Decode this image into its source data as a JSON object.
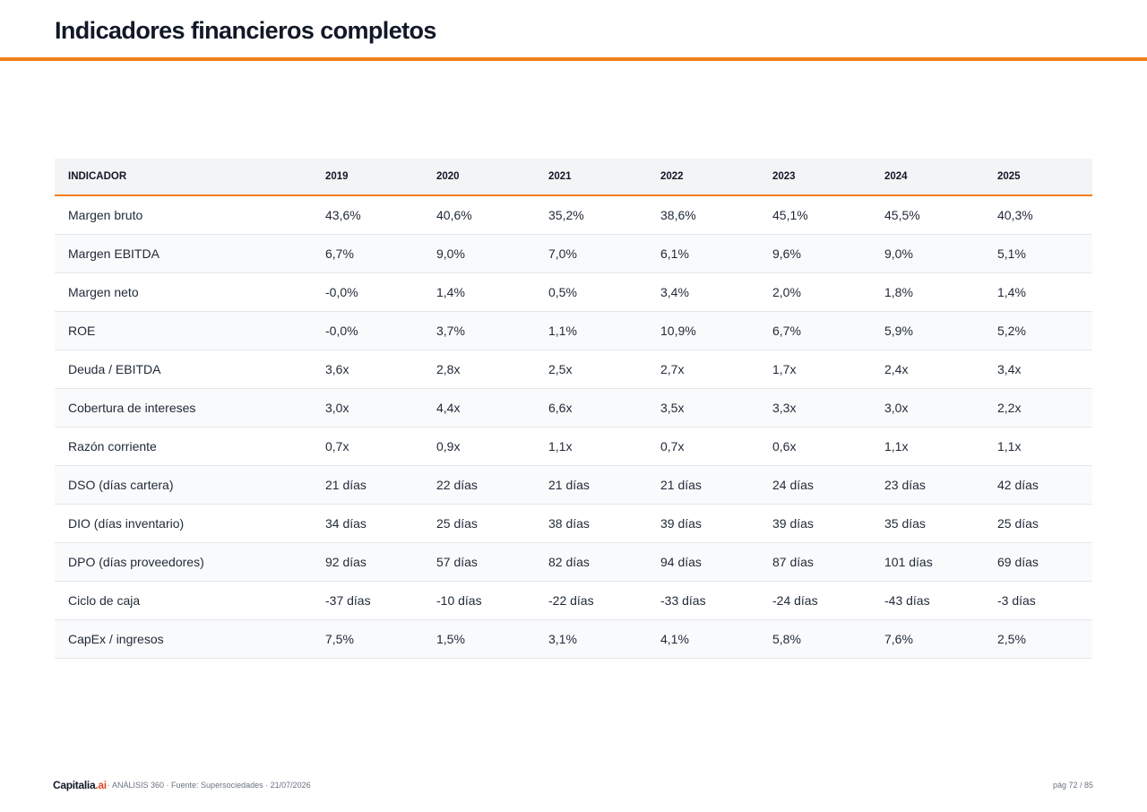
{
  "title": "Indicadores financieros completos",
  "colors": {
    "accent": "#f07f1a",
    "brand_accent": "#e34a2a",
    "header_bg": "#f3f4f6",
    "row_alt_bg": "#f9fafb"
  },
  "table": {
    "headers": [
      "INDICADOR",
      "2019",
      "2020",
      "2021",
      "2022",
      "2023",
      "2024",
      "2025"
    ],
    "rows": [
      [
        "Margen bruto",
        "43,6%",
        "40,6%",
        "35,2%",
        "38,6%",
        "45,1%",
        "45,5%",
        "40,3%"
      ],
      [
        "Margen EBITDA",
        "6,7%",
        "9,0%",
        "7,0%",
        "6,1%",
        "9,6%",
        "9,0%",
        "5,1%"
      ],
      [
        "Margen neto",
        "-0,0%",
        "1,4%",
        "0,5%",
        "3,4%",
        "2,0%",
        "1,8%",
        "1,4%"
      ],
      [
        "ROE",
        "-0,0%",
        "3,7%",
        "1,1%",
        "10,9%",
        "6,7%",
        "5,9%",
        "5,2%"
      ],
      [
        "Deuda / EBITDA",
        "3,6x",
        "2,8x",
        "2,5x",
        "2,7x",
        "1,7x",
        "2,4x",
        "3,4x"
      ],
      [
        "Cobertura de intereses",
        "3,0x",
        "4,4x",
        "6,6x",
        "3,5x",
        "3,3x",
        "3,0x",
        "2,2x"
      ],
      [
        "Razón corriente",
        "0,7x",
        "0,9x",
        "1,1x",
        "0,7x",
        "0,6x",
        "1,1x",
        "1,1x"
      ],
      [
        "DSO (días cartera)",
        "21 días",
        "22 días",
        "21 días",
        "21 días",
        "24 días",
        "23 días",
        "42 días"
      ],
      [
        "DIO (días inventario)",
        "34 días",
        "25 días",
        "38 días",
        "39 días",
        "39 días",
        "35 días",
        "25 días"
      ],
      [
        "DPO (días proveedores)",
        "92 días",
        "57 días",
        "82 días",
        "94 días",
        "87 días",
        "101 días",
        "69 días"
      ],
      [
        "Ciclo de caja",
        "-37 días",
        "-10 días",
        "-22 días",
        "-33 días",
        "-24 días",
        "-43 días",
        "-3 días"
      ],
      [
        "CapEx / ingresos",
        "7,5%",
        "1,5%",
        "3,1%",
        "4,1%",
        "5,8%",
        "7,6%",
        "2,5%"
      ]
    ]
  },
  "footer": {
    "brand_name": "Capitalia",
    "brand_suffix": ".ai",
    "note": "· ANÁLISIS 360 · Fuente: Supersociedades · 21/07/2026",
    "page": "pág 72 / 85"
  }
}
